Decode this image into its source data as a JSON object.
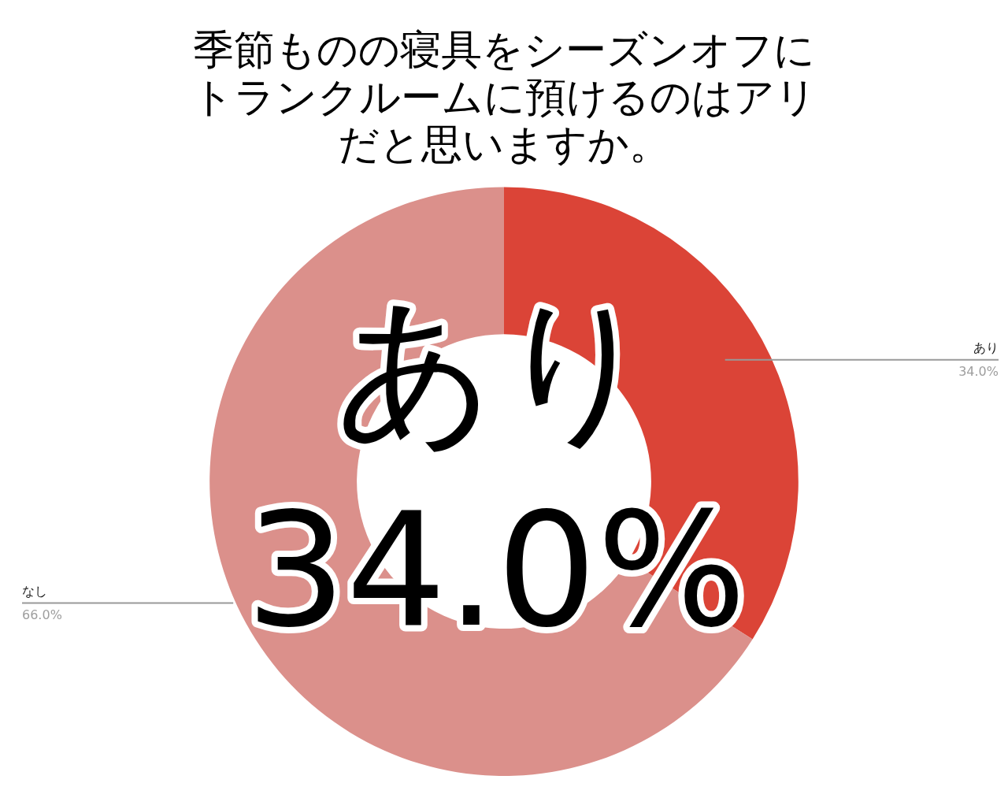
{
  "chart_data": {
    "type": "donut",
    "title": "季節ものの寝具をシーズンオフにトランクルームに預けるのはアリだと思いますか。",
    "categories": [
      "あり",
      "なし"
    ],
    "values": [
      34.0,
      66.0
    ],
    "value_labels": [
      "34.0%",
      "66.0%"
    ],
    "colors": [
      "#db4437",
      "#db908b"
    ],
    "annotations": [
      "あり\n34.0%"
    ],
    "legend": false
  }
}
